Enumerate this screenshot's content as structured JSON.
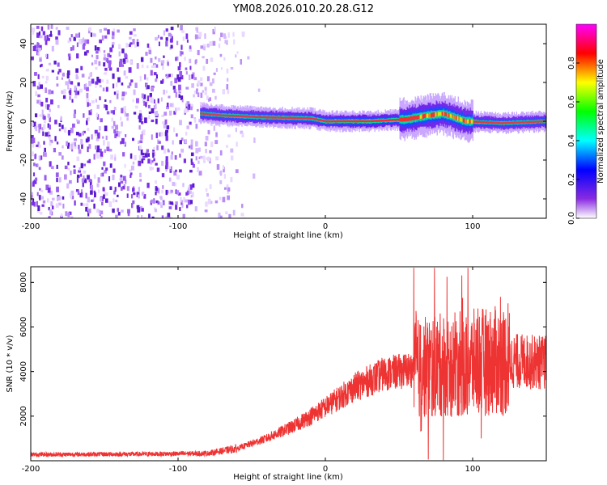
{
  "title": "YM08.2026.010.20.28.G12",
  "chart_data": [
    {
      "type": "heatmap",
      "name": "spectrogram",
      "xlabel": "Height of straight line (km)",
      "ylabel": "Frequency (Hz)",
      "xlim": [
        -200,
        150
      ],
      "ylim": [
        -50,
        50
      ],
      "x_ticks": [
        -200,
        -100,
        0,
        100
      ],
      "y_ticks": [
        -40,
        -20,
        0,
        20,
        40
      ],
      "colorbar": {
        "label": "Normalized spectral amplitude",
        "range": [
          0,
          1
        ],
        "ticks": [
          0.0,
          0.2,
          0.4,
          0.6,
          0.8
        ],
        "colormap": [
          "#ffffff",
          "#8a2be2",
          "#0000ff",
          "#00ffff",
          "#00ff00",
          "#ffff00",
          "#ff0000",
          "#ff00ff"
        ]
      },
      "ridge": {
        "start_height_km": -85,
        "points": [
          [
            -85,
            4
          ],
          [
            -70,
            3
          ],
          [
            -40,
            2
          ],
          [
            -10,
            1.5
          ],
          [
            0,
            0
          ],
          [
            30,
            0
          ],
          [
            55,
            1
          ],
          [
            70,
            3
          ],
          [
            80,
            4
          ],
          [
            95,
            0
          ],
          [
            120,
            -1
          ],
          [
            150,
            0
          ]
        ]
      },
      "noise_region_km": [
        -200,
        -70
      ]
    },
    {
      "type": "line",
      "name": "snr",
      "xlabel": "Height of straight line (km)",
      "ylabel": "SNR (10 * v/v)",
      "xlim": [
        -200,
        150
      ],
      "ylim": [
        0,
        8700
      ],
      "x_ticks": [
        -200,
        -100,
        0,
        100
      ],
      "y_ticks": [
        2000,
        4000,
        6000,
        8000
      ],
      "color": "#ee3333",
      "trend": [
        [
          -200,
          280
        ],
        [
          -120,
          300
        ],
        [
          -80,
          330
        ],
        [
          -60,
          550
        ],
        [
          -40,
          1000
        ],
        [
          -20,
          1600
        ],
        [
          0,
          2400
        ],
        [
          20,
          3300
        ],
        [
          40,
          3900
        ],
        [
          60,
          4100
        ],
        [
          80,
          4300
        ],
        [
          100,
          4400
        ],
        [
          120,
          4500
        ],
        [
          150,
          4400
        ]
      ]
    }
  ]
}
